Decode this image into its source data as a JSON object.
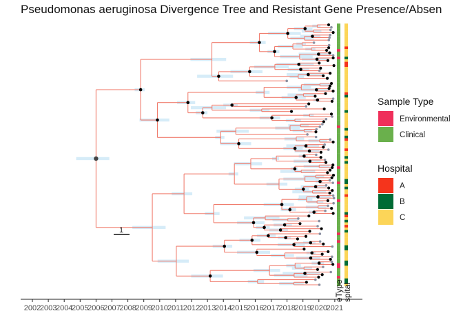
{
  "chart_data": {
    "type": "phylogenetic-tree",
    "title": "Pseudomonas aeruginosa Divergence Tree and Resistant Gene Presence/Absen",
    "x_axis": {
      "ticks": [
        "2002",
        "2003",
        "2004",
        "2005",
        "2006",
        "2007",
        "2008",
        "2009",
        "2010",
        "2011",
        "2012",
        "2013",
        "2014",
        "2015",
        "2016",
        "2017",
        "2018",
        "2019",
        "2020",
        "2021"
      ],
      "range": [
        2001.2,
        2022.6
      ]
    },
    "root_date": 2006.0,
    "tip_date_latest": 2021.0,
    "scale_bar": {
      "label": "1",
      "length_years": 1
    },
    "heatmap_columns": [
      {
        "label": "Sample Type",
        "visible_text": "eType"
      },
      {
        "label": "Hospital",
        "visible_text": "spital"
      }
    ],
    "colors": {
      "branch": "#f07d6e",
      "confidence_interval": "#cfe9f7",
      "node": "#000000",
      "root_node": "#444444",
      "axis": "#222222"
    },
    "legends": [
      {
        "title": "Sample Type",
        "items": [
          {
            "label": "Environmental",
            "color": "#ef2f5a"
          },
          {
            "label": "Clinical",
            "color": "#6ab04c"
          }
        ]
      },
      {
        "title": "Hospital",
        "items": [
          {
            "label": "A",
            "color": "#f5341c"
          },
          {
            "label": "B",
            "color": "#006b35"
          },
          {
            "label": "C",
            "color": "#fcd558"
          }
        ]
      }
    ]
  }
}
